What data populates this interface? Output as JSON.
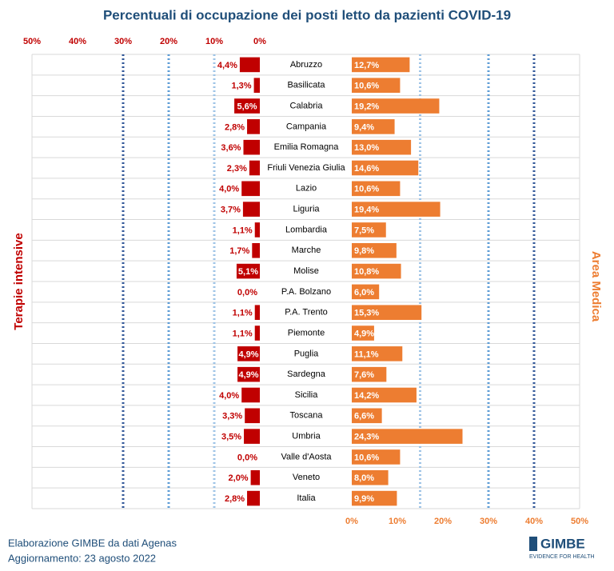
{
  "chart_data": {
    "type": "bar",
    "orientation": "horizontal",
    "title": "Percentuali di occupazione  dei posti letto da pazienti COVID-19",
    "categories": [
      "Abruzzo",
      "Basilicata",
      "Calabria",
      "Campania",
      "Emilia Romagna",
      "Friuli Venezia Giulia",
      "Lazio",
      "Liguria",
      "Lombardia",
      "Marche",
      "Molise",
      "P.A. Bolzano",
      "P.A. Trento",
      "Piemonte",
      "Puglia",
      "Sardegna",
      "Sicilia",
      "Toscana",
      "Umbria",
      "Valle d'Aosta",
      "Veneto",
      "Italia"
    ],
    "series": [
      {
        "name": "Terapie intensive",
        "color": "#c00000",
        "axis": "x",
        "values": [
          4.4,
          1.3,
          5.6,
          2.8,
          3.6,
          2.3,
          4.0,
          3.7,
          1.1,
          1.7,
          5.1,
          0.0,
          1.1,
          1.1,
          4.9,
          4.9,
          4.0,
          3.3,
          3.5,
          0.0,
          2.0,
          2.8
        ],
        "value_labels": [
          "4,4%",
          "1,3%",
          "5,6%",
          "2,8%",
          "3,6%",
          "2,3%",
          "4,0%",
          "3,7%",
          "1,1%",
          "1,7%",
          "5,1%",
          "0,0%",
          "1,1%",
          "1,1%",
          "4,9%",
          "4,9%",
          "4,0%",
          "3,3%",
          "3,5%",
          "0,0%",
          "2,0%",
          "2,8%"
        ]
      },
      {
        "name": "Area Medica",
        "color": "#ed7d31",
        "axis": "x2",
        "values": [
          12.7,
          10.6,
          19.2,
          9.4,
          13.0,
          14.6,
          10.6,
          19.4,
          7.5,
          9.8,
          10.8,
          6.0,
          15.3,
          4.9,
          11.1,
          7.6,
          14.2,
          6.6,
          24.3,
          10.6,
          8.0,
          9.9
        ],
        "value_labels": [
          "12,7%",
          "10,6%",
          "19,2%",
          "9,4%",
          "13,0%",
          "14,6%",
          "10,6%",
          "19,4%",
          "7,5%",
          "9,8%",
          "10,8%",
          "6,0%",
          "15,3%",
          "4,9%",
          "11,1%",
          "7,6%",
          "14,2%",
          "6,6%",
          "24,3%",
          "10,6%",
          "8,0%",
          "9,9%"
        ]
      }
    ],
    "xlim": [
      50,
      0
    ],
    "xticks": [
      {
        "value": 50,
        "label": "50%"
      },
      {
        "value": 40,
        "label": "40%"
      },
      {
        "value": 30,
        "label": "30%"
      },
      {
        "value": 20,
        "label": "20%"
      },
      {
        "value": 10,
        "label": "10%"
      },
      {
        "value": 0,
        "label": "0%"
      }
    ],
    "x2lim": [
      0,
      50
    ],
    "x2ticks": [
      {
        "value": 0,
        "label": "0%"
      },
      {
        "value": 10,
        "label": "10%"
      },
      {
        "value": 20,
        "label": "20%"
      },
      {
        "value": 30,
        "label": "30%"
      },
      {
        "value": 40,
        "label": "40%"
      },
      {
        "value": 50,
        "label": "50%"
      }
    ],
    "thresholds": [
      {
        "axis": "x",
        "value": 10,
        "color": "#9dc3e6"
      },
      {
        "axis": "x",
        "value": 20,
        "color": "#5b9bd5"
      },
      {
        "axis": "x",
        "value": 30,
        "color": "#2f5597"
      },
      {
        "axis": "x2",
        "value": 15,
        "color": "#9dc3e6"
      },
      {
        "axis": "x2",
        "value": 30,
        "color": "#5b9bd5"
      },
      {
        "axis": "x2",
        "value": 40,
        "color": "#2f5597"
      }
    ],
    "grid": true
  },
  "footer": {
    "source": "Elaborazione GIMBE da dati Agenas",
    "update": "Aggiornamento:  23 agosto 2022"
  },
  "logo": {
    "name": "GIMBE",
    "tagline": "EVIDENCE FOR HEALTH"
  }
}
